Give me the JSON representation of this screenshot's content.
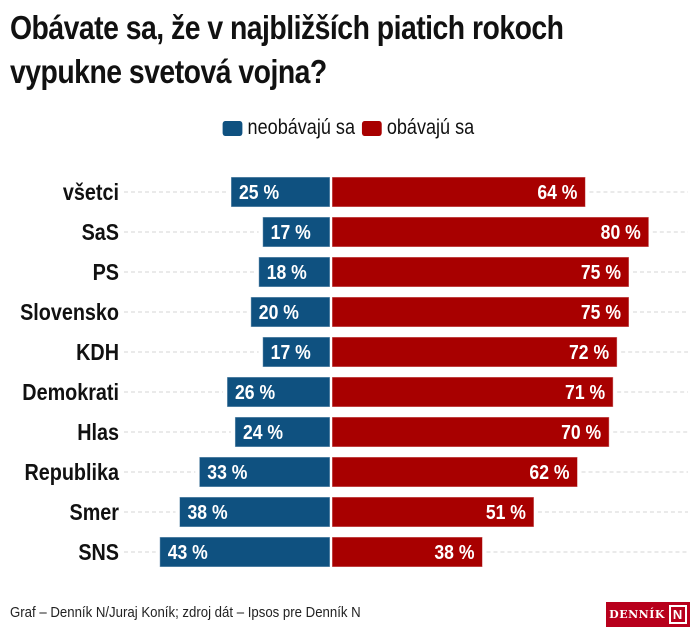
{
  "header": {
    "title_line1": "Obávate sa, že v najbližších piatich rokoch",
    "title_line2": "vypukne svetová vojna?"
  },
  "legend": [
    {
      "label": "neobávajú sa",
      "color": "#0f5180"
    },
    {
      "label": "obávajú sa",
      "color": "#a80000"
    }
  ],
  "chart_data": {
    "type": "bar",
    "orientation": "horizontal-diverging",
    "title": "Obávate sa, že v najbližších piatich rokoch vypukne svetová vojna?",
    "categories": [
      "všetci",
      "SaS",
      "PS",
      "Slovensko",
      "KDH",
      "Demokrati",
      "Hlas",
      "Republika",
      "Smer",
      "SNS"
    ],
    "series": [
      {
        "name": "neobávajú sa",
        "color": "#0f5180",
        "values": [
          25,
          17,
          18,
          20,
          17,
          26,
          24,
          33,
          38,
          43
        ]
      },
      {
        "name": "obávajú sa",
        "color": "#a80000",
        "values": [
          64,
          80,
          75,
          75,
          72,
          71,
          70,
          62,
          51,
          38
        ]
      }
    ],
    "value_suffix": " %",
    "xlabel": "",
    "ylabel": "",
    "grid": "dashed category guide lines",
    "legend_position": "top-center"
  },
  "footer": {
    "credit": "Graf – Denník N/Juraj Koník; zdroj dát – Ipsos pre Denník N",
    "logo_text": "DENNÍK",
    "logo_mark": "N"
  }
}
